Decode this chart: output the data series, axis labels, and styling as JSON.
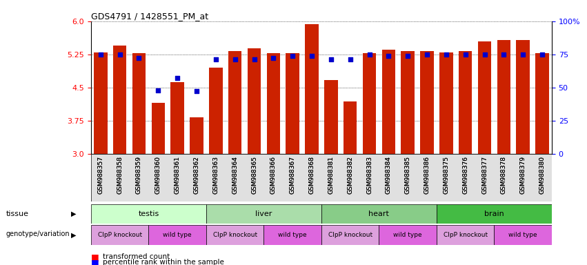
{
  "title": "GDS4791 / 1428551_PM_at",
  "samples": [
    "GSM988357",
    "GSM988358",
    "GSM988359",
    "GSM988360",
    "GSM988361",
    "GSM988362",
    "GSM988363",
    "GSM988364",
    "GSM988365",
    "GSM988366",
    "GSM988367",
    "GSM988368",
    "GSM988381",
    "GSM988382",
    "GSM988383",
    "GSM988384",
    "GSM988385",
    "GSM988386",
    "GSM988375",
    "GSM988376",
    "GSM988377",
    "GSM988378",
    "GSM988379",
    "GSM988380"
  ],
  "bar_values": [
    5.3,
    5.45,
    5.28,
    4.15,
    4.62,
    3.82,
    4.95,
    5.32,
    5.38,
    5.27,
    5.27,
    5.93,
    4.66,
    4.18,
    5.27,
    5.35,
    5.33,
    5.33,
    5.3,
    5.32,
    5.55,
    5.58,
    5.58,
    5.27
  ],
  "dot_percentiles": [
    75,
    75,
    72,
    48,
    57,
    47,
    71,
    71,
    71,
    72,
    74,
    74,
    71,
    71,
    75,
    74,
    74,
    75,
    75,
    75,
    75,
    75,
    75,
    75
  ],
  "ylim_left": [
    3.0,
    6.0
  ],
  "ylim_right": [
    0,
    100
  ],
  "yticks_left": [
    3.0,
    3.75,
    4.5,
    5.25,
    6.0
  ],
  "yticks_right": [
    0,
    25,
    50,
    75,
    100
  ],
  "bar_color": "#CC2200",
  "dot_color": "#0000CC",
  "tissue_data": [
    {
      "label": "testis",
      "start": 0,
      "end": 6,
      "color": "#ccffcc"
    },
    {
      "label": "liver",
      "start": 6,
      "end": 12,
      "color": "#aaddaa"
    },
    {
      "label": "heart",
      "start": 12,
      "end": 18,
      "color": "#88cc88"
    },
    {
      "label": "brain",
      "start": 18,
      "end": 24,
      "color": "#44bb44"
    }
  ],
  "geno_data": [
    {
      "label": "ClpP knockout",
      "start": 0,
      "end": 3,
      "color": "#dda0dd"
    },
    {
      "label": "wild type",
      "start": 3,
      "end": 6,
      "color": "#dd66dd"
    },
    {
      "label": "ClpP knockout",
      "start": 6,
      "end": 9,
      "color": "#dda0dd"
    },
    {
      "label": "wild type",
      "start": 9,
      "end": 12,
      "color": "#dd66dd"
    },
    {
      "label": "ClpP knockout",
      "start": 12,
      "end": 15,
      "color": "#dda0dd"
    },
    {
      "label": "wild type",
      "start": 15,
      "end": 18,
      "color": "#dd66dd"
    },
    {
      "label": "ClpP knockout",
      "start": 18,
      "end": 21,
      "color": "#dda0dd"
    },
    {
      "label": "wild type",
      "start": 21,
      "end": 24,
      "color": "#dd66dd"
    }
  ]
}
